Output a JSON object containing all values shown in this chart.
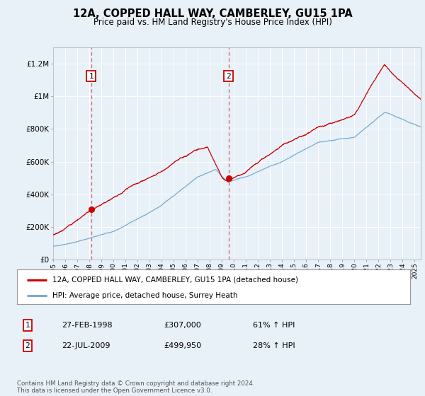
{
  "title": "12A, COPPED HALL WAY, CAMBERLEY, GU15 1PA",
  "subtitle": "Price paid vs. HM Land Registry's House Price Index (HPI)",
  "bg_color": "#e8f0f8",
  "plot_bg_color": "#e8f0f8",
  "red_line_color": "#cc0000",
  "blue_line_color": "#7aabcf",
  "dashed_red_color": "#cc6666",
  "legend_label_red": "12A, COPPED HALL WAY, CAMBERLEY, GU15 1PA (detached house)",
  "legend_label_blue": "HPI: Average price, detached house, Surrey Heath",
  "purchase1_date": "27-FEB-1998",
  "purchase1_price": 307000,
  "purchase1_label": "1",
  "purchase1_hpi": "61% ↑ HPI",
  "purchase1_x": 1998.15,
  "purchase2_date": "22-JUL-2009",
  "purchase2_price": 499950,
  "purchase2_label": "2",
  "purchase2_hpi": "28% ↑ HPI",
  "purchase2_x": 2009.55,
  "ylim_min": 0,
  "ylim_max": 1300000,
  "yticks": [
    0,
    200000,
    400000,
    600000,
    800000,
    1000000,
    1200000
  ],
  "ytick_labels": [
    "£0",
    "£200K",
    "£400K",
    "£600K",
    "£800K",
    "£1M",
    "£1.2M"
  ],
  "xmin": 1995.0,
  "xmax": 2025.5,
  "footer": "Contains HM Land Registry data © Crown copyright and database right 2024.\nThis data is licensed under the Open Government Licence v3.0."
}
